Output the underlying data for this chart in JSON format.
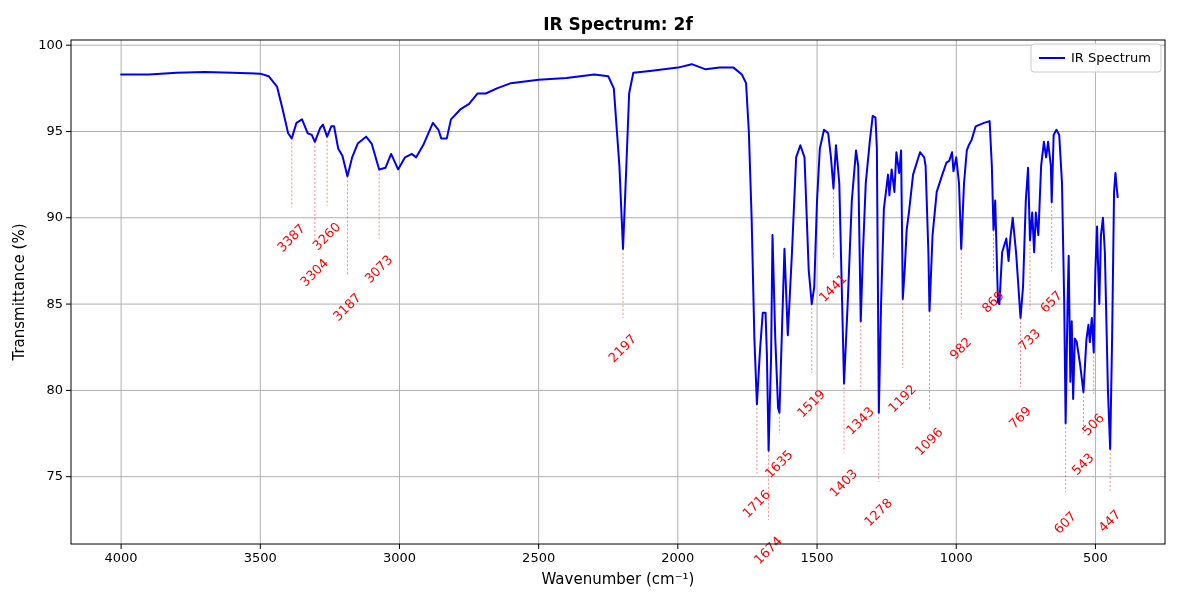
{
  "chart_data": {
    "type": "line",
    "title": "IR Spectrum: 2f",
    "xlabel": "Wavenumber (cm⁻¹)",
    "ylabel": "Transmittance (%)",
    "xlim": [
      4180,
      250
    ],
    "xticks": [
      4000,
      3500,
      3000,
      2500,
      2000,
      1500,
      1000,
      500
    ],
    "ylim": [
      71.1,
      100.3
    ],
    "yticks": [
      75,
      80,
      85,
      90,
      95,
      100
    ],
    "grid": true,
    "legend": "top right",
    "series": [
      {
        "name": "IR Spectrum",
        "color": "#0000ee",
        "x": [
          4000,
          3900,
          3800,
          3700,
          3600,
          3500,
          3470,
          3440,
          3420,
          3400,
          3387,
          3370,
          3350,
          3330,
          3315,
          3304,
          3285,
          3275,
          3260,
          3245,
          3235,
          3220,
          3205,
          3187,
          3170,
          3150,
          3120,
          3100,
          3073,
          3050,
          3030,
          3005,
          2980,
          2955,
          2940,
          2915,
          2880,
          2860,
          2850,
          2830,
          2815,
          2780,
          2750,
          2720,
          2690,
          2650,
          2600,
          2500,
          2400,
          2300,
          2250,
          2230,
          2210,
          2197,
          2185,
          2175,
          2160,
          2100,
          2000,
          1950,
          1900,
          1850,
          1800,
          1770,
          1755,
          1745,
          1735,
          1725,
          1716,
          1705,
          1695,
          1685,
          1680,
          1674,
          1665,
          1660,
          1650,
          1640,
          1635,
          1625,
          1617,
          1605,
          1590,
          1575,
          1560,
          1545,
          1530,
          1519,
          1510,
          1500,
          1490,
          1475,
          1460,
          1450,
          1441,
          1432,
          1420,
          1403,
          1390,
          1375,
          1360,
          1352,
          1343,
          1335,
          1325,
          1310,
          1300,
          1290,
          1285,
          1278,
          1270,
          1260,
          1245,
          1240,
          1232,
          1222,
          1215,
          1205,
          1198,
          1192,
          1185,
          1178,
          1170,
          1155,
          1130,
          1115,
          1110,
          1100,
          1096,
          1085,
          1070,
          1050,
          1035,
          1025,
          1015,
          1010,
          1000,
          990,
          982,
          972,
          962,
          955,
          945,
          930,
          900,
          880,
          872,
          866,
          860,
          850,
          845,
          835,
          820,
          812,
          805,
          797,
          785,
          769,
          760,
          750,
          742,
          735,
          727,
          720,
          714,
          705,
          695,
          685,
          677,
          670,
          660,
          657,
          650,
          640,
          630,
          620,
          612,
          607,
          600,
          596,
          590,
          585,
          580,
          574,
          567,
          555,
          543,
          532,
          525,
          520,
          513,
          506,
          500,
          494,
          490,
          486,
          480,
          473,
          466,
          455,
          447,
          440,
          433,
          428,
          425,
          420
        ],
        "values": [
          98.3,
          98.3,
          98.4,
          98.45,
          98.4,
          98.35,
          98.2,
          97.6,
          96.3,
          94.9,
          94.6,
          95.5,
          95.7,
          94.9,
          94.8,
          94.4,
          95.2,
          95.4,
          94.7,
          95.3,
          95.3,
          94.0,
          93.6,
          92.4,
          93.5,
          94.3,
          94.7,
          94.3,
          92.8,
          92.9,
          93.7,
          92.8,
          93.5,
          93.7,
          93.5,
          94.2,
          95.5,
          95.1,
          94.6,
          94.6,
          95.7,
          96.3,
          96.6,
          97.2,
          97.2,
          97.5,
          97.8,
          98.0,
          98.1,
          98.3,
          98.2,
          97.5,
          93,
          88.2,
          93,
          97.2,
          98.4,
          98.5,
          98.7,
          98.9,
          98.6,
          98.7,
          98.7,
          98.3,
          97.8,
          95.0,
          90,
          83,
          79.2,
          82.3,
          84.5,
          84.5,
          82,
          76.5,
          82,
          89.0,
          83,
          79,
          78.7,
          84,
          88.2,
          83.2,
          88,
          93.5,
          94.2,
          93.5,
          87,
          85.0,
          86,
          91,
          94,
          95.1,
          94.9,
          93.5,
          91.7,
          94.2,
          92,
          80.4,
          85,
          91,
          93.9,
          93,
          84.0,
          88,
          92,
          94.5,
          95.9,
          95.8,
          94,
          78.7,
          85,
          90.5,
          92.5,
          91.3,
          92.8,
          91.5,
          93.8,
          92.6,
          93.9,
          85.3,
          87,
          89.3,
          90.3,
          92.5,
          93.8,
          93.5,
          93.0,
          88,
          84.6,
          89,
          91.5,
          92.5,
          93.2,
          93.3,
          93.8,
          92.7,
          93.5,
          92,
          88.2,
          92,
          93.9,
          94.2,
          94.5,
          95.3,
          95.5,
          95.6,
          93,
          89.3,
          91.0,
          85.1,
          85,
          88,
          88.8,
          87.5,
          88.9,
          90,
          88,
          84.2,
          86,
          91,
          92.9,
          88.7,
          90.3,
          88.0,
          90.3,
          89,
          93,
          94.4,
          93.5,
          94.4,
          93,
          90.9,
          94.8,
          95.1,
          94.8,
          92,
          85,
          78.1,
          85,
          87.8,
          80.5,
          84,
          79.5,
          83,
          82.8,
          81.5,
          79.9,
          83,
          83.8,
          82.8,
          84.2,
          82.2,
          87,
          89.5,
          87,
          85.0,
          89,
          90,
          88,
          80,
          76.6,
          83,
          91.5,
          92.6,
          92,
          91.2
        ]
      }
    ],
    "annotations": [
      {
        "text": "3387",
        "x": 3387,
        "y": 94.6
      },
      {
        "text": "3304",
        "x": 3304,
        "y": 94.4
      },
      {
        "text": "3260",
        "x": 3260,
        "y": 94.7
      },
      {
        "text": "3187",
        "x": 3187,
        "y": 92.4
      },
      {
        "text": "3073",
        "x": 3073,
        "y": 92.8
      },
      {
        "text": "2197",
        "x": 2197,
        "y": 88.2
      },
      {
        "text": "1716",
        "x": 1716,
        "y": 79.2
      },
      {
        "text": "1674",
        "x": 1674,
        "y": 76.5
      },
      {
        "text": "1635",
        "x": 1635,
        "y": 78.7
      },
      {
        "text": "1519",
        "x": 1519,
        "y": 85.0
      },
      {
        "text": "1441",
        "x": 1441,
        "y": 91.7
      },
      {
        "text": "1403",
        "x": 1403,
        "y": 80.4
      },
      {
        "text": "1343",
        "x": 1343,
        "y": 84.0
      },
      {
        "text": "1278",
        "x": 1278,
        "y": 78.7
      },
      {
        "text": "1192",
        "x": 1192,
        "y": 85.3
      },
      {
        "text": "1096",
        "x": 1096,
        "y": 84.6
      },
      {
        "text": "982",
        "x": 982,
        "y": 88.2
      },
      {
        "text": "869",
        "x": 866,
        "y": 89.3
      },
      {
        "text": "769",
        "x": 769,
        "y": 84.2
      },
      {
        "text": "733",
        "x": 735,
        "y": 88.7
      },
      {
        "text": "657",
        "x": 657,
        "y": 90.9
      },
      {
        "text": "607",
        "x": 607,
        "y": 78.1
      },
      {
        "text": "543",
        "x": 543,
        "y": 79.9
      },
      {
        "text": "506",
        "x": 506,
        "y": 82.2
      },
      {
        "text": "447",
        "x": 447,
        "y": 76.6
      }
    ]
  }
}
